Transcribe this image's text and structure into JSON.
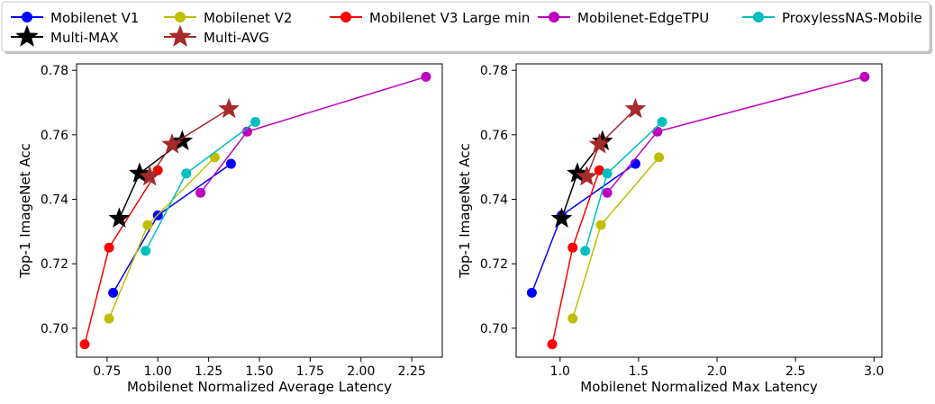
{
  "legend": {
    "placement": "top-center",
    "entries": [
      {
        "name": "Mobilenet V1",
        "color": "#0000ff",
        "marker": "circle"
      },
      {
        "name": "Mobilenet V2",
        "color": "#bfbf00",
        "marker": "circle"
      },
      {
        "name": "Mobilenet V3 Large min",
        "color": "#ff0000",
        "marker": "circle"
      },
      {
        "name": "Mobilenet-EdgeTPU",
        "color": "#bf00bf",
        "marker": "circle"
      },
      {
        "name": "ProxylessNAS-Mobile",
        "color": "#00bfbf",
        "marker": "circle"
      },
      {
        "name": "Multi-MAX",
        "color": "#000000",
        "marker": "star"
      },
      {
        "name": "Multi-AVG",
        "color": "#a52a2a",
        "marker": "star"
      }
    ]
  },
  "chart_data": [
    {
      "type": "line",
      "title": "",
      "xlabel": "Mobilenet Normalized Average Latency",
      "ylabel": "Top-1 ImageNet Acc",
      "xlim": [
        0.6,
        2.4
      ],
      "ylim": [
        0.691,
        0.782
      ],
      "xticks": [
        0.75,
        1.0,
        1.25,
        1.5,
        1.75,
        2.0,
        2.25
      ],
      "xtick_labels": [
        "0.75",
        "1.00",
        "1.25",
        "1.50",
        "1.75",
        "2.00",
        "2.25"
      ],
      "yticks": [
        0.7,
        0.72,
        0.74,
        0.76,
        0.78
      ],
      "ytick_labels": [
        "0.70",
        "0.72",
        "0.74",
        "0.76",
        "0.78"
      ],
      "series": [
        {
          "name": "Mobilenet V1",
          "x": [
            0.78,
            1.0,
            1.36
          ],
          "y": [
            0.711,
            0.735,
            0.751
          ]
        },
        {
          "name": "Mobilenet V2",
          "x": [
            0.76,
            0.95,
            1.28
          ],
          "y": [
            0.703,
            0.732,
            0.753
          ]
        },
        {
          "name": "Mobilenet V3 Large min",
          "x": [
            0.64,
            0.76,
            1.0
          ],
          "y": [
            0.695,
            0.725,
            0.749
          ]
        },
        {
          "name": "Mobilenet-EdgeTPU",
          "x": [
            1.21,
            1.44,
            2.32
          ],
          "y": [
            0.742,
            0.761,
            0.778
          ]
        },
        {
          "name": "ProxylessNAS-Mobile",
          "x": [
            0.94,
            1.14,
            1.48
          ],
          "y": [
            0.724,
            0.748,
            0.764
          ]
        },
        {
          "name": "Multi-MAX",
          "x": [
            0.81,
            0.91,
            1.12
          ],
          "y": [
            0.734,
            0.748,
            0.758
          ]
        },
        {
          "name": "Multi-AVG",
          "x": [
            0.96,
            1.07,
            1.35
          ],
          "y": [
            0.747,
            0.757,
            0.768
          ]
        }
      ]
    },
    {
      "type": "line",
      "title": "",
      "xlabel": "Mobilenet Normalized Max Latency",
      "ylabel": "Top-1 ImageNet Acc",
      "xlim": [
        0.72,
        3.05
      ],
      "ylim": [
        0.691,
        0.782
      ],
      "xticks": [
        1.0,
        1.5,
        2.0,
        2.5,
        3.0
      ],
      "xtick_labels": [
        "1.0",
        "1.5",
        "2.0",
        "2.5",
        "3.0"
      ],
      "yticks": [
        0.7,
        0.72,
        0.74,
        0.76,
        0.78
      ],
      "ytick_labels": [
        "0.70",
        "0.72",
        "0.74",
        "0.76",
        "0.78"
      ],
      "series": [
        {
          "name": "Mobilenet V1",
          "x": [
            0.82,
            1.01,
            1.48
          ],
          "y": [
            0.711,
            0.735,
            0.751
          ]
        },
        {
          "name": "Mobilenet V2",
          "x": [
            1.08,
            1.26,
            1.63
          ],
          "y": [
            0.703,
            0.732,
            0.753
          ]
        },
        {
          "name": "Mobilenet V3 Large min",
          "x": [
            0.95,
            1.08,
            1.25
          ],
          "y": [
            0.695,
            0.725,
            0.749
          ]
        },
        {
          "name": "Mobilenet-EdgeTPU",
          "x": [
            1.3,
            1.62,
            2.94
          ],
          "y": [
            0.742,
            0.761,
            0.778
          ]
        },
        {
          "name": "ProxylessNAS-Mobile",
          "x": [
            1.16,
            1.3,
            1.65
          ],
          "y": [
            0.724,
            0.748,
            0.764
          ]
        },
        {
          "name": "Multi-MAX",
          "x": [
            1.01,
            1.11,
            1.27
          ],
          "y": [
            0.734,
            0.748,
            0.758
          ]
        },
        {
          "name": "Multi-AVG",
          "x": [
            1.17,
            1.25,
            1.48
          ],
          "y": [
            0.747,
            0.757,
            0.768
          ]
        }
      ]
    }
  ]
}
